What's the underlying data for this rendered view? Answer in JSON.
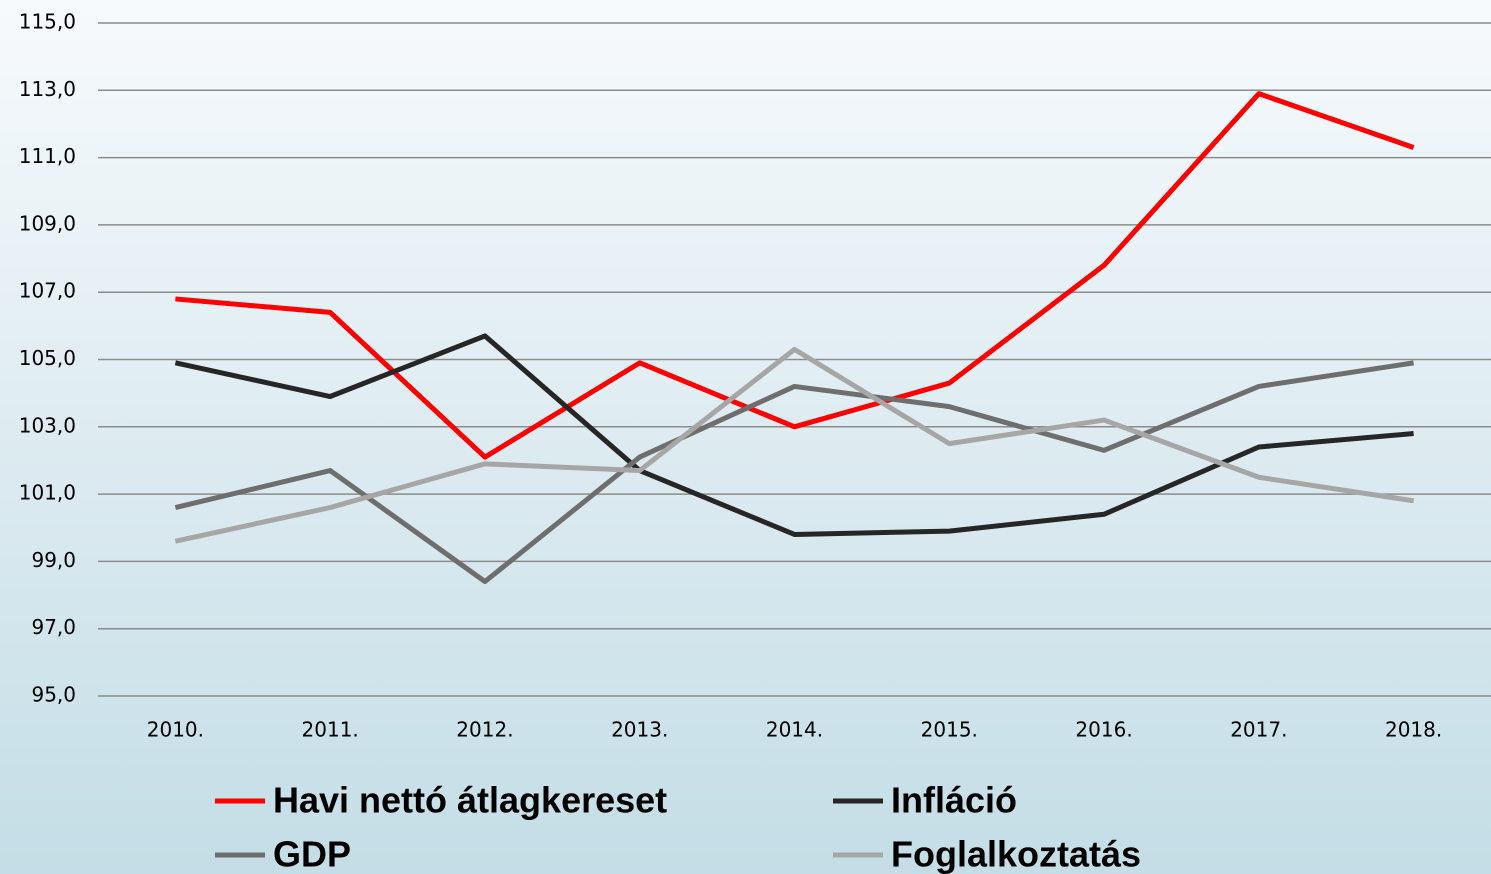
{
  "chart_data": {
    "type": "line",
    "categories": [
      "2010.",
      "2011.",
      "2012.",
      "2013.",
      "2014.",
      "2015.",
      "2016.",
      "2017.",
      "2018."
    ],
    "series": [
      {
        "name": "Havi nettó átlagkereset",
        "color": "#ff0000",
        "values": [
          106.8,
          106.4,
          102.1,
          104.9,
          103.0,
          104.3,
          107.8,
          112.9,
          111.3
        ]
      },
      {
        "name": "Infláció",
        "color": "#262626",
        "values": [
          104.9,
          103.9,
          105.7,
          101.7,
          99.8,
          99.9,
          100.4,
          102.4,
          102.8
        ]
      },
      {
        "name": "GDP",
        "color": "#6e6e6e",
        "values": [
          100.6,
          101.7,
          98.4,
          102.1,
          104.2,
          103.6,
          102.3,
          104.2,
          104.9
        ]
      },
      {
        "name": "Foglalkoztatás",
        "color": "#a6a6a6",
        "values": [
          99.6,
          100.6,
          101.9,
          101.7,
          105.3,
          102.5,
          103.2,
          101.5,
          100.8
        ]
      }
    ],
    "ylim": [
      95,
      115
    ],
    "yticks": [
      {
        "value": 95,
        "label": "95,0"
      },
      {
        "value": 97,
        "label": "97,0"
      },
      {
        "value": 99,
        "label": "99,0"
      },
      {
        "value": 101,
        "label": "101,0"
      },
      {
        "value": 103,
        "label": "103,0"
      },
      {
        "value": 105,
        "label": "105,0"
      },
      {
        "value": 107,
        "label": "107,0"
      },
      {
        "value": 109,
        "label": "109,0"
      },
      {
        "value": 111,
        "label": "111,0"
      },
      {
        "value": 113,
        "label": "113,0"
      },
      {
        "value": 115,
        "label": "115,0"
      }
    ],
    "grid": true
  }
}
